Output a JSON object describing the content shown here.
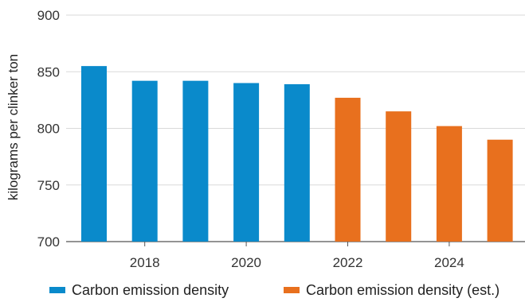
{
  "chart_data": {
    "type": "bar",
    "ylabel": "kilograms per clinker ton",
    "ylim": [
      700,
      900
    ],
    "yticks": [
      700,
      750,
      800,
      850,
      900
    ],
    "xticks": [
      "2018",
      "2020",
      "2022",
      "2024"
    ],
    "grid": true,
    "legend_position": "bottom",
    "series": [
      {
        "name": "Carbon emission density",
        "color": "#0A8ACB",
        "x": [
          2017,
          2018,
          2019,
          2020,
          2021
        ],
        "values": [
          855,
          842,
          842,
          840,
          839
        ]
      },
      {
        "name": "Carbon emission density (est.)",
        "color": "#E8701E",
        "x": [
          2022,
          2023,
          2024,
          2025
        ],
        "values": [
          827,
          815,
          802,
          790
        ]
      }
    ]
  }
}
